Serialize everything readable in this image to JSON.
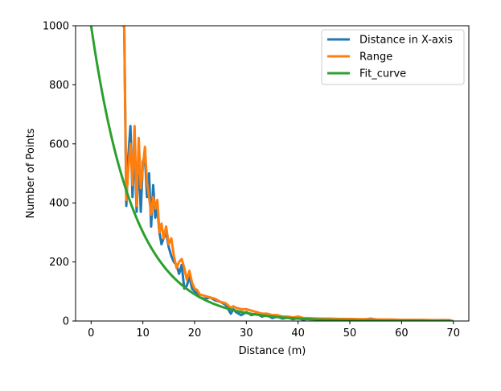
{
  "chart_data": {
    "type": "line",
    "xlabel": "Distance (m)",
    "ylabel": "Number of Points",
    "xlim": [
      -3,
      73
    ],
    "ylim": [
      0,
      1000
    ],
    "xticks": [
      0,
      10,
      20,
      30,
      40,
      50,
      60,
      70
    ],
    "yticks": [
      0,
      200,
      400,
      600,
      800,
      1000
    ],
    "grid": false,
    "legend_position": "top-right",
    "series": [
      {
        "name": "Distance in X-axis",
        "color": "#1f77b4",
        "x": [
          6.0,
          6.4,
          6.8,
          7.2,
          7.6,
          8.0,
          8.4,
          8.8,
          9.2,
          9.6,
          10.0,
          10.4,
          10.8,
          11.2,
          11.6,
          12.0,
          12.4,
          12.8,
          13.2,
          13.6,
          14.0,
          14.5,
          15.0,
          15.5,
          16.0,
          16.5,
          17.0,
          17.5,
          18.0,
          18.5,
          19.0,
          19.5,
          20.0,
          20.5,
          21.0,
          22.0,
          23.0,
          24.0,
          25.0,
          26.0,
          27.0,
          27.5,
          28.0,
          29.0,
          30.0,
          31.0,
          32.0,
          33.0,
          34.0,
          35.0,
          36.0,
          37.0,
          38.0,
          39.0,
          40.0,
          41.0,
          42.0,
          44.0,
          46.0,
          48.0,
          50.0,
          52.0,
          54.0,
          56.0,
          58.0,
          60.0,
          62.0,
          64.0,
          66.0,
          68.0,
          69.5
        ],
        "y": [
          1000,
          1000,
          390,
          560,
          660,
          420,
          600,
          370,
          560,
          370,
          540,
          560,
          420,
          500,
          320,
          460,
          350,
          380,
          300,
          260,
          280,
          300,
          250,
          220,
          200,
          190,
          160,
          190,
          110,
          120,
          150,
          110,
          100,
          95,
          80,
          75,
          80,
          70,
          65,
          55,
          25,
          40,
          30,
          20,
          30,
          20,
          25,
          15,
          20,
          10,
          15,
          8,
          12,
          6,
          10,
          5,
          8,
          6,
          5,
          4,
          5,
          3,
          8,
          3,
          4,
          3,
          2,
          3,
          2,
          3,
          2
        ]
      },
      {
        "name": "Range",
        "color": "#ff7f0e",
        "x": [
          6.0,
          6.4,
          6.8,
          7.2,
          7.6,
          8.0,
          8.4,
          8.8,
          9.2,
          9.6,
          10.0,
          10.4,
          10.8,
          11.2,
          11.6,
          12.0,
          12.4,
          12.8,
          13.2,
          13.6,
          14.0,
          14.5,
          15.0,
          15.5,
          16.0,
          16.5,
          17.0,
          17.5,
          18.0,
          18.5,
          19.0,
          19.5,
          20.0,
          20.5,
          21.0,
          22.0,
          23.0,
          24.0,
          25.0,
          26.0,
          27.0,
          27.5,
          28.0,
          29.0,
          30.0,
          31.0,
          32.0,
          33.0,
          34.0,
          35.0,
          36.0,
          37.0,
          38.0,
          39.0,
          40.0,
          41.0,
          42.0,
          44.0,
          46.0,
          48.0,
          50.0,
          52.0,
          54.0,
          56.0,
          58.0,
          60.0,
          62.0,
          64.0,
          66.0,
          68.0,
          69.5
        ],
        "y": [
          1000,
          1000,
          410,
          520,
          600,
          460,
          660,
          390,
          620,
          450,
          520,
          590,
          470,
          420,
          360,
          420,
          380,
          410,
          300,
          330,
          280,
          320,
          260,
          280,
          220,
          180,
          200,
          210,
          180,
          140,
          170,
          130,
          110,
          105,
          90,
          85,
          80,
          75,
          65,
          60,
          45,
          50,
          45,
          40,
          40,
          35,
          30,
          25,
          25,
          20,
          20,
          15,
          15,
          12,
          15,
          10,
          10,
          8,
          8,
          7,
          7,
          6,
          6,
          5,
          5,
          4,
          4,
          4,
          3,
          3,
          3
        ]
      },
      {
        "name": "Fit_curve",
        "color": "#2ca02c",
        "model": "exponential",
        "a": 1000,
        "b": 0.12,
        "x_start": 0,
        "x_end": 70
      }
    ]
  }
}
